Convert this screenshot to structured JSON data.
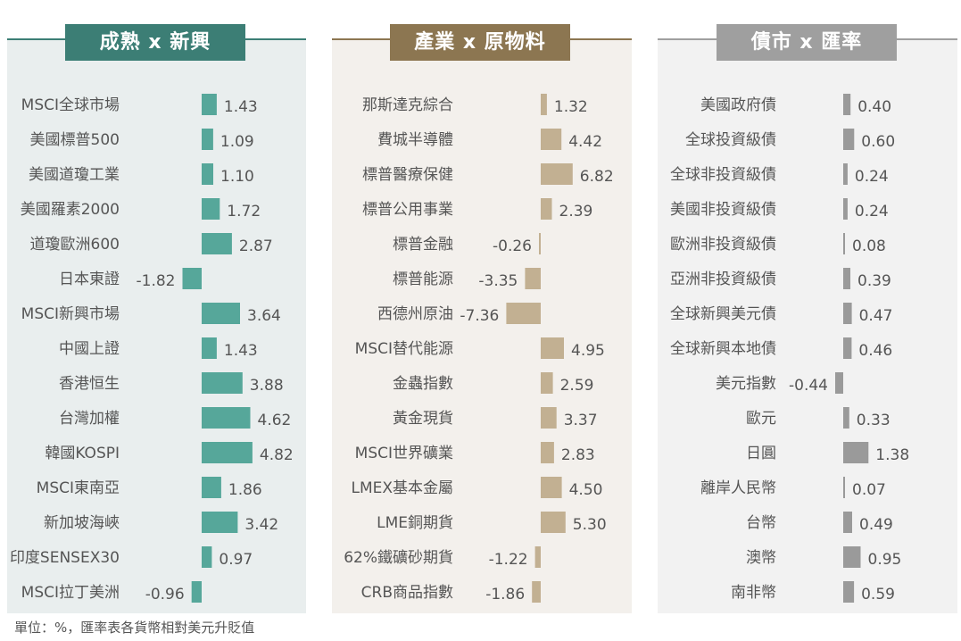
{
  "colors": {
    "panel1_bg": "#e9eeee",
    "panel1_accent": "#3c7e75",
    "panel1_bar": "#56a79a",
    "panel2_bg": "#f3f0ec",
    "panel2_accent": "#8c7651",
    "panel2_bar": "#c2b092",
    "panel3_bg": "#f2f2f2",
    "panel3_accent": "#9f9f9f",
    "panel3_bar": "#9a9a9a"
  },
  "footnote": "單位：%，匯率表各貨幣相對美元升貶值",
  "chart_data": [
    {
      "type": "bar",
      "orientation": "horizontal",
      "title": "成熟 x 新興",
      "categories": [
        "MSCI全球市場",
        "美國標普500",
        "美國道瓊工業",
        "美國羅素2000",
        "道瓊歐洲600",
        "日本東證",
        "MSCI新興市場",
        "中國上證",
        "香港恒生",
        "台灣加權",
        "韓國KOSPI",
        "MSCI東南亞",
        "新加坡海峽",
        "印度SENSEX30",
        "MSCI拉丁美洲"
      ],
      "values": [
        1.43,
        1.09,
        1.1,
        1.72,
        2.87,
        -1.82,
        3.64,
        1.43,
        3.88,
        4.62,
        4.82,
        1.86,
        3.42,
        0.97,
        -0.96
      ],
      "value_labels": [
        "1.43",
        "1.09",
        "1.10",
        "1.72",
        "2.87",
        "-1.82",
        "3.64",
        "1.43",
        "3.88",
        "4.62",
        "4.82",
        "1.86",
        "3.42",
        "0.97",
        "-0.96"
      ],
      "xlim": [
        -1.82,
        4.82
      ]
    },
    {
      "type": "bar",
      "orientation": "horizontal",
      "title": "產業 x 原物料",
      "categories": [
        "那斯達克綜合",
        "費城半導體",
        "標普醫療保健",
        "標普公用事業",
        "標普金融",
        "標普能源",
        "西德州原油",
        "MSCI替代能源",
        "金蟲指數",
        "黃金現貨",
        "MSCI世界礦業",
        "LMEX基本金屬",
        "LME銅期貨",
        "62%鐵礦砂期貨",
        "CRB商品指數"
      ],
      "values": [
        1.32,
        4.42,
        6.82,
        2.39,
        -0.26,
        -3.35,
        -7.36,
        4.95,
        2.59,
        3.37,
        2.83,
        4.5,
        5.3,
        -1.22,
        -1.86
      ],
      "value_labels": [
        "1.32",
        "4.42",
        "6.82",
        "2.39",
        "-0.26",
        "-3.35",
        "-7.36",
        "4.95",
        "2.59",
        "3.37",
        "2.83",
        "4.50",
        "5.30",
        "-1.22",
        "-1.86"
      ],
      "xlim": [
        -7.36,
        6.82
      ]
    },
    {
      "type": "bar",
      "orientation": "horizontal",
      "title": "債市 x 匯率",
      "categories": [
        "美國政府債",
        "全球投資級債",
        "全球非投資級債",
        "美國非投資級債",
        "歐洲非投資級債",
        "亞洲非投資級債",
        "全球新興美元債",
        "全球新興本地債",
        "美元指數",
        "歐元",
        "日圓",
        "離岸人民幣",
        "台幣",
        "澳幣",
        "南非幣"
      ],
      "values": [
        0.4,
        0.6,
        0.24,
        0.24,
        0.08,
        0.39,
        0.47,
        0.46,
        -0.44,
        0.33,
        1.38,
        0.07,
        0.49,
        0.95,
        0.59
      ],
      "value_labels": [
        "0.40",
        "0.60",
        "0.24",
        "0.24",
        "0.08",
        "0.39",
        "0.47",
        "0.46",
        "-0.44",
        "0.33",
        "1.38",
        "0.07",
        "0.49",
        "0.95",
        "0.59"
      ],
      "xlim": [
        -0.44,
        1.38
      ]
    }
  ]
}
